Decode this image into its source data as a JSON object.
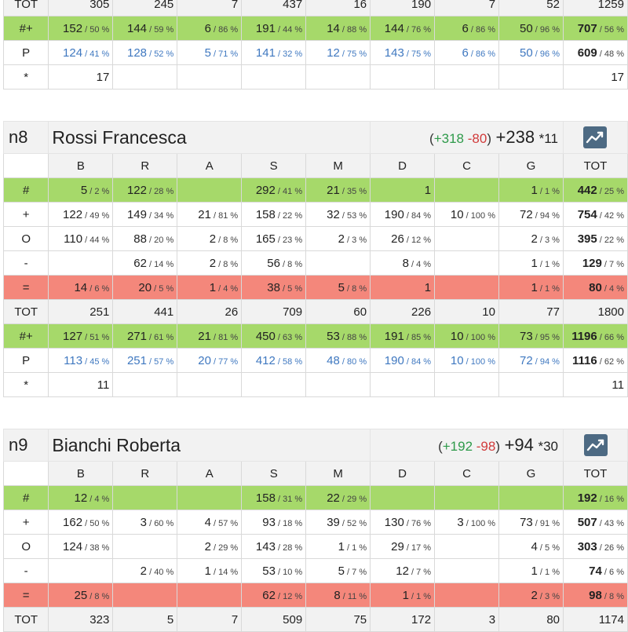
{
  "top_section": {
    "tot": [
      "TOT",
      "305",
      "245",
      "7",
      "437",
      "16",
      "190",
      "7",
      "52",
      "1259"
    ],
    "hashplus": {
      "label": "#+",
      "cells": [
        [
          "152",
          "50 %"
        ],
        [
          "144",
          "59 %"
        ],
        [
          "6",
          "86 %"
        ],
        [
          "191",
          "44 %"
        ],
        [
          "14",
          "88 %"
        ],
        [
          "144",
          "76 %"
        ],
        [
          "6",
          "86 %"
        ],
        [
          "50",
          "96 %"
        ],
        [
          "707",
          "56 %"
        ]
      ]
    },
    "p": {
      "label": "P",
      "cells": [
        [
          "124",
          "41 %"
        ],
        [
          "128",
          "52 %"
        ],
        [
          "5",
          "71 %"
        ],
        [
          "141",
          "32 %"
        ],
        [
          "12",
          "75 %"
        ],
        [
          "143",
          "75 %"
        ],
        [
          "6",
          "86 %"
        ],
        [
          "50",
          "96 %"
        ],
        [
          "609",
          "48 %"
        ]
      ]
    },
    "star": {
      "label": "*",
      "b": "17",
      "tot": "17"
    }
  },
  "sections": [
    {
      "code": "n8",
      "name": "Rossi Francesca",
      "summary": {
        "open": "(",
        "pos": "+318",
        "neg": "-80",
        "close": ")",
        "net": "+238",
        "star": "*11"
      },
      "headers": [
        "B",
        "R",
        "A",
        "S",
        "M",
        "D",
        "C",
        "G",
        "TOT"
      ],
      "rows": [
        {
          "label": "#",
          "cells": [
            [
              "5",
              "2 %"
            ],
            [
              "122",
              "28 %"
            ],
            [
              "",
              ""
            ],
            [
              "292",
              "41 %"
            ],
            [
              "21",
              "35 %"
            ],
            [
              "1",
              ""
            ],
            [
              "",
              ""
            ],
            [
              "1",
              "1 %"
            ],
            [
              "442",
              "25 %"
            ]
          ]
        },
        {
          "label": "+",
          "cells": [
            [
              "122",
              "49 %"
            ],
            [
              "149",
              "34 %"
            ],
            [
              "21",
              "81 %"
            ],
            [
              "158",
              "22 %"
            ],
            [
              "32",
              "53 %"
            ],
            [
              "190",
              "84 %"
            ],
            [
              "10",
              "100 %"
            ],
            [
              "72",
              "94 %"
            ],
            [
              "754",
              "42 %"
            ]
          ]
        },
        {
          "label": "O",
          "cells": [
            [
              "110",
              "44 %"
            ],
            [
              "88",
              "20 %"
            ],
            [
              "2",
              "8 %"
            ],
            [
              "165",
              "23 %"
            ],
            [
              "2",
              "3 %"
            ],
            [
              "26",
              "12 %"
            ],
            [
              "",
              ""
            ],
            [
              "2",
              "3 %"
            ],
            [
              "395",
              "22 %"
            ]
          ]
        },
        {
          "label": "-",
          "cells": [
            [
              "",
              ""
            ],
            [
              "62",
              "14 %"
            ],
            [
              "2",
              "8 %"
            ],
            [
              "56",
              "8 %"
            ],
            [
              "",
              ""
            ],
            [
              "8",
              "4 %"
            ],
            [
              "",
              ""
            ],
            [
              "1",
              "1 %"
            ],
            [
              "129",
              "7 %"
            ]
          ]
        },
        {
          "label": "=",
          "cells": [
            [
              "14",
              "6 %"
            ],
            [
              "20",
              "5 %"
            ],
            [
              "1",
              "4 %"
            ],
            [
              "38",
              "5 %"
            ],
            [
              "5",
              "8 %"
            ],
            [
              "1",
              ""
            ],
            [
              "",
              ""
            ],
            [
              "1",
              "1 %"
            ],
            [
              "80",
              "4 %"
            ]
          ]
        }
      ],
      "tot": [
        "TOT",
        "251",
        "441",
        "26",
        "709",
        "60",
        "226",
        "10",
        "77",
        "1800"
      ],
      "hashplus": {
        "label": "#+",
        "cells": [
          [
            "127",
            "51 %"
          ],
          [
            "271",
            "61 %"
          ],
          [
            "21",
            "81 %"
          ],
          [
            "450",
            "63 %"
          ],
          [
            "53",
            "88 %"
          ],
          [
            "191",
            "85 %"
          ],
          [
            "10",
            "100 %"
          ],
          [
            "73",
            "95 %"
          ],
          [
            "1196",
            "66 %"
          ]
        ]
      },
      "p": {
        "label": "P",
        "cells": [
          [
            "113",
            "45 %"
          ],
          [
            "251",
            "57 %"
          ],
          [
            "20",
            "77 %"
          ],
          [
            "412",
            "58 %"
          ],
          [
            "48",
            "80 %"
          ],
          [
            "190",
            "84 %"
          ],
          [
            "10",
            "100 %"
          ],
          [
            "72",
            "94 %"
          ],
          [
            "1116",
            "62 %"
          ]
        ]
      },
      "star": {
        "label": "*",
        "b": "11",
        "tot": "11"
      }
    },
    {
      "code": "n9",
      "name": "Bianchi Roberta",
      "summary": {
        "open": "(",
        "pos": "+192",
        "neg": "-98",
        "close": ")",
        "net": "+94",
        "star": "*30"
      },
      "headers": [
        "B",
        "R",
        "A",
        "S",
        "M",
        "D",
        "C",
        "G",
        "TOT"
      ],
      "rows": [
        {
          "label": "#",
          "cells": [
            [
              "12",
              "4 %"
            ],
            [
              "",
              ""
            ],
            [
              "",
              ""
            ],
            [
              "158",
              "31 %"
            ],
            [
              "22",
              "29 %"
            ],
            [
              "",
              ""
            ],
            [
              "",
              ""
            ],
            [
              "",
              ""
            ],
            [
              "192",
              "16 %"
            ]
          ]
        },
        {
          "label": "+",
          "cells": [
            [
              "162",
              "50 %"
            ],
            [
              "3",
              "60 %"
            ],
            [
              "4",
              "57 %"
            ],
            [
              "93",
              "18 %"
            ],
            [
              "39",
              "52 %"
            ],
            [
              "130",
              "76 %"
            ],
            [
              "3",
              "100 %"
            ],
            [
              "73",
              "91 %"
            ],
            [
              "507",
              "43 %"
            ]
          ]
        },
        {
          "label": "O",
          "cells": [
            [
              "124",
              "38 %"
            ],
            [
              "",
              ""
            ],
            [
              "2",
              "29 %"
            ],
            [
              "143",
              "28 %"
            ],
            [
              "1",
              "1 %"
            ],
            [
              "29",
              "17 %"
            ],
            [
              "",
              ""
            ],
            [
              "4",
              "5 %"
            ],
            [
              "303",
              "26 %"
            ]
          ]
        },
        {
          "label": "-",
          "cells": [
            [
              "",
              ""
            ],
            [
              "2",
              "40 %"
            ],
            [
              "1",
              "14 %"
            ],
            [
              "53",
              "10 %"
            ],
            [
              "5",
              "7 %"
            ],
            [
              "12",
              "7 %"
            ],
            [
              "",
              ""
            ],
            [
              "1",
              "1 %"
            ],
            [
              "74",
              "6 %"
            ]
          ]
        },
        {
          "label": "=",
          "cells": [
            [
              "25",
              "8 %"
            ],
            [
              "",
              ""
            ],
            [
              "",
              ""
            ],
            [
              "62",
              "12 %"
            ],
            [
              "8",
              "11 %"
            ],
            [
              "1",
              "1 %"
            ],
            [
              "",
              ""
            ],
            [
              "2",
              "3 %"
            ],
            [
              "98",
              "8 %"
            ]
          ]
        }
      ],
      "tot": [
        "TOT",
        "323",
        "5",
        "7",
        "509",
        "75",
        "172",
        "3",
        "80",
        "1174"
      ]
    }
  ],
  "icons": {
    "chart": "trend-chart-icon",
    "accent": "#4d6a83",
    "green": "#a6d96a",
    "red": "#f4877b",
    "blue": "#3f78c0"
  }
}
